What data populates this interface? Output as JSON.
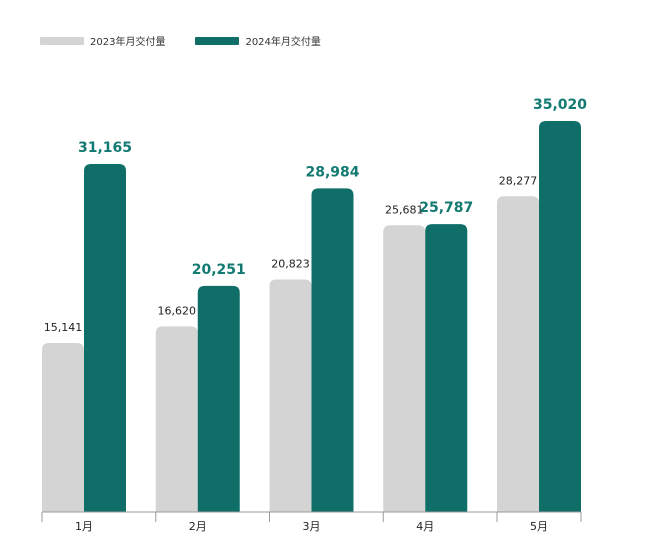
{
  "legend": {
    "series_2023": "2023年月交付量",
    "series_2024": "2024年月交付量"
  },
  "colors": {
    "series_2023": "#d4d4d4",
    "series_2024": "#0f6f68",
    "label_2023": "#222222",
    "label_2024": "#137a72",
    "axis": "#9b9b9b",
    "category": "#222222"
  },
  "chart_data": {
    "type": "bar",
    "categories": [
      "1月",
      "2月",
      "3月",
      "4月",
      "5月"
    ],
    "series": [
      {
        "name": "2023年月交付量",
        "values": [
          15141,
          16620,
          20823,
          25681,
          28277
        ],
        "labels": [
          "15,141",
          "16,620",
          "20,823",
          "25,681",
          "28,277"
        ]
      },
      {
        "name": "2024年月交付量",
        "values": [
          31165,
          20251,
          28984,
          25787,
          35020
        ],
        "labels": [
          "31,165",
          "20,251",
          "28,984",
          "25,787",
          "35,020"
        ]
      }
    ],
    "title": "",
    "xlabel": "",
    "ylabel": "",
    "ylim": [
      0,
      40000
    ],
    "grid": false,
    "legend_position": "top-left"
  }
}
